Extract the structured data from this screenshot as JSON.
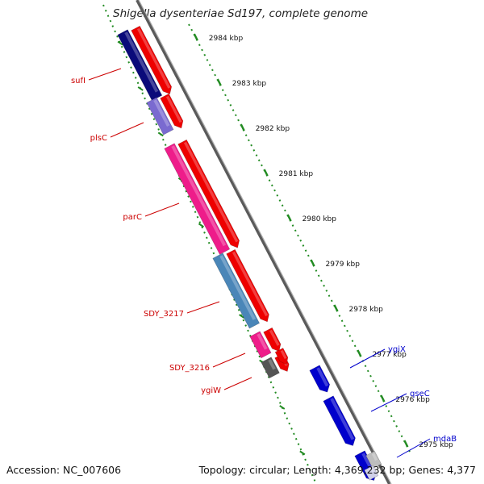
{
  "title": "Shigella dysenteriae Sd197, complete genome",
  "footer": {
    "accession": "Accession: NC_007606",
    "summary": "Topology: circular; Length: 4,369,232 bp; Genes: 4,377"
  },
  "colors": {
    "reverse_label": "#cc0000",
    "forward_label": "#0000cc",
    "tick": "#228b22",
    "backbone": "#777777"
  },
  "kbp_labels": [
    "2984 kbp",
    "2983 kbp",
    "2982 kbp",
    "2981 kbp",
    "2980 kbp",
    "2979 kbp",
    "2978 kbp",
    "2977 kbp",
    "2976 kbp",
    "2975 kbp"
  ],
  "reverse_genes": [
    {
      "name": "sufI",
      "color": "#0a0a7a"
    },
    {
      "name": "plsC",
      "color": "#7a6ad0"
    },
    {
      "name": "parC",
      "color": "#ee1c8a"
    },
    {
      "name": "SDY_3217",
      "color": "#4a86b8"
    },
    {
      "name": "SDY_3216",
      "color": "#ee1c8a"
    },
    {
      "name": "ygiW",
      "color": "#555555"
    }
  ],
  "forward_genes": [
    {
      "name": "ygiX",
      "color": "#0000cc"
    },
    {
      "name": "qseC",
      "color": "#0000cc"
    },
    {
      "name": "mdaB",
      "color": "#0000cc"
    }
  ]
}
